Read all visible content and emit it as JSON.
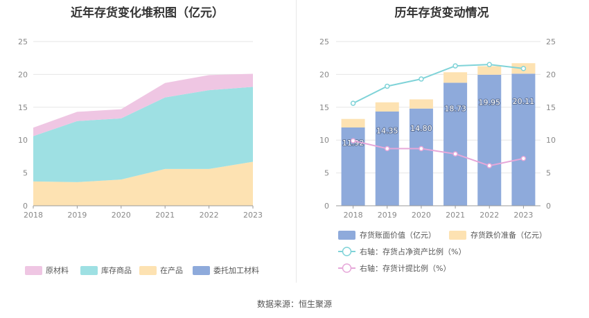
{
  "source_text": "数据来源：恒生聚源",
  "chart_data": [
    {
      "type": "area",
      "stacked": true,
      "title": "近年存货变化堆积图（亿元）",
      "x": [
        "2018",
        "2019",
        "2020",
        "2021",
        "2022",
        "2023"
      ],
      "ylim": [
        0,
        25
      ],
      "yticks": [
        0,
        5,
        10,
        15,
        20,
        25
      ],
      "grid": true,
      "legend_position": "bottom",
      "series": [
        {
          "name": "委托加工材料",
          "color": "#8eaadb",
          "values": [
            0,
            0,
            0,
            0,
            0,
            0
          ]
        },
        {
          "name": "在产品",
          "color": "#fde2b2",
          "values": [
            3.7,
            3.6,
            4.0,
            5.6,
            5.6,
            6.7
          ]
        },
        {
          "name": "库存商品",
          "color": "#9ee0e3",
          "values": [
            6.9,
            9.3,
            9.3,
            10.9,
            12.0,
            11.4
          ]
        },
        {
          "name": "原材料",
          "color": "#efc6e3",
          "values": [
            1.3,
            1.4,
            1.4,
            2.2,
            2.3,
            2.0
          ]
        }
      ],
      "legend_order": [
        "原材料",
        "库存商品",
        "在产品",
        "委托加工材料"
      ]
    },
    {
      "type": "bar",
      "stacked": true,
      "title": "历年存货变动情况",
      "categories": [
        "2018",
        "2019",
        "2020",
        "2021",
        "2022",
        "2023"
      ],
      "ylim": [
        0,
        25
      ],
      "yticks": [
        0,
        5,
        10,
        15,
        20,
        25
      ],
      "y2lim": [
        0,
        25
      ],
      "y2ticks": [
        0,
        5,
        10,
        15,
        20,
        25
      ],
      "grid": true,
      "legend_position": "bottom",
      "series": [
        {
          "name": "存货账面价值（亿元）",
          "kind": "bar",
          "axis": "left",
          "color": "#8eaadb",
          "values": [
            11.92,
            14.35,
            14.8,
            18.73,
            19.95,
            20.11
          ],
          "labels": [
            "11.92",
            "14.35",
            "14.80",
            "18.73",
            "19.95",
            "20.11"
          ]
        },
        {
          "name": "存货跌价准备（亿元）",
          "kind": "bar",
          "axis": "left",
          "color": "#fde2b2",
          "values": [
            1.3,
            1.4,
            1.4,
            1.6,
            1.3,
            1.6
          ]
        },
        {
          "name": "右轴：存货占净资产比例（%）",
          "kind": "line",
          "axis": "right",
          "color": "#7fd3d8",
          "values": [
            15.6,
            18.2,
            19.3,
            21.3,
            21.5,
            20.9
          ]
        },
        {
          "name": "右轴：存货计提比例（%）",
          "kind": "line",
          "axis": "right",
          "color": "#e6a7d9",
          "values": [
            9.9,
            8.7,
            8.7,
            7.9,
            6.1,
            7.2
          ]
        }
      ]
    }
  ]
}
